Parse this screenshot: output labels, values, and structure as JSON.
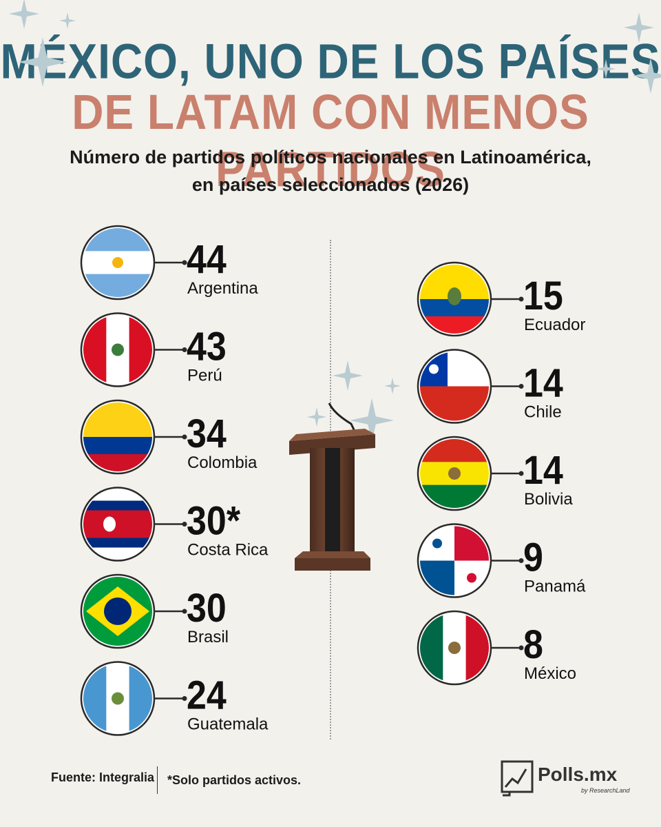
{
  "header": {
    "title_line1": "MÉXICO, UNO DE LOS PAÍSES",
    "title_line2": "DE LATAM CON MENOS PARTIDOS",
    "subtitle_line1": "Número de partidos políticos nacionales en Latinoamérica,",
    "subtitle_line2": "en países seleccionados (2026)"
  },
  "chart_data": {
    "type": "table",
    "categories": [
      "Argentina",
      "Perú",
      "Colombia",
      "Costa Rica",
      "Brasil",
      "Guatemala",
      "Ecuador",
      "Chile",
      "Bolivia",
      "Panamá",
      "México"
    ],
    "values": [
      44,
      43,
      34,
      30,
      30,
      24,
      15,
      14,
      14,
      9,
      8
    ],
    "value_labels": [
      "44",
      "43",
      "34",
      "30*",
      "30",
      "24",
      "15",
      "14",
      "14",
      "9",
      "8"
    ],
    "title": "Número de partidos políticos nacionales en Latinoamérica, en países seleccionados (2026)",
    "xlabel": "",
    "ylabel": ""
  },
  "footer": {
    "source": "Fuente: Integralia",
    "note": "*Solo partidos activos.",
    "brand": "Polls.mx",
    "brand_sub": "by ResearchLand"
  },
  "colors": {
    "title_blue": "#2e6477",
    "title_rose": "#c9806d",
    "background": "#f3f1ec"
  }
}
